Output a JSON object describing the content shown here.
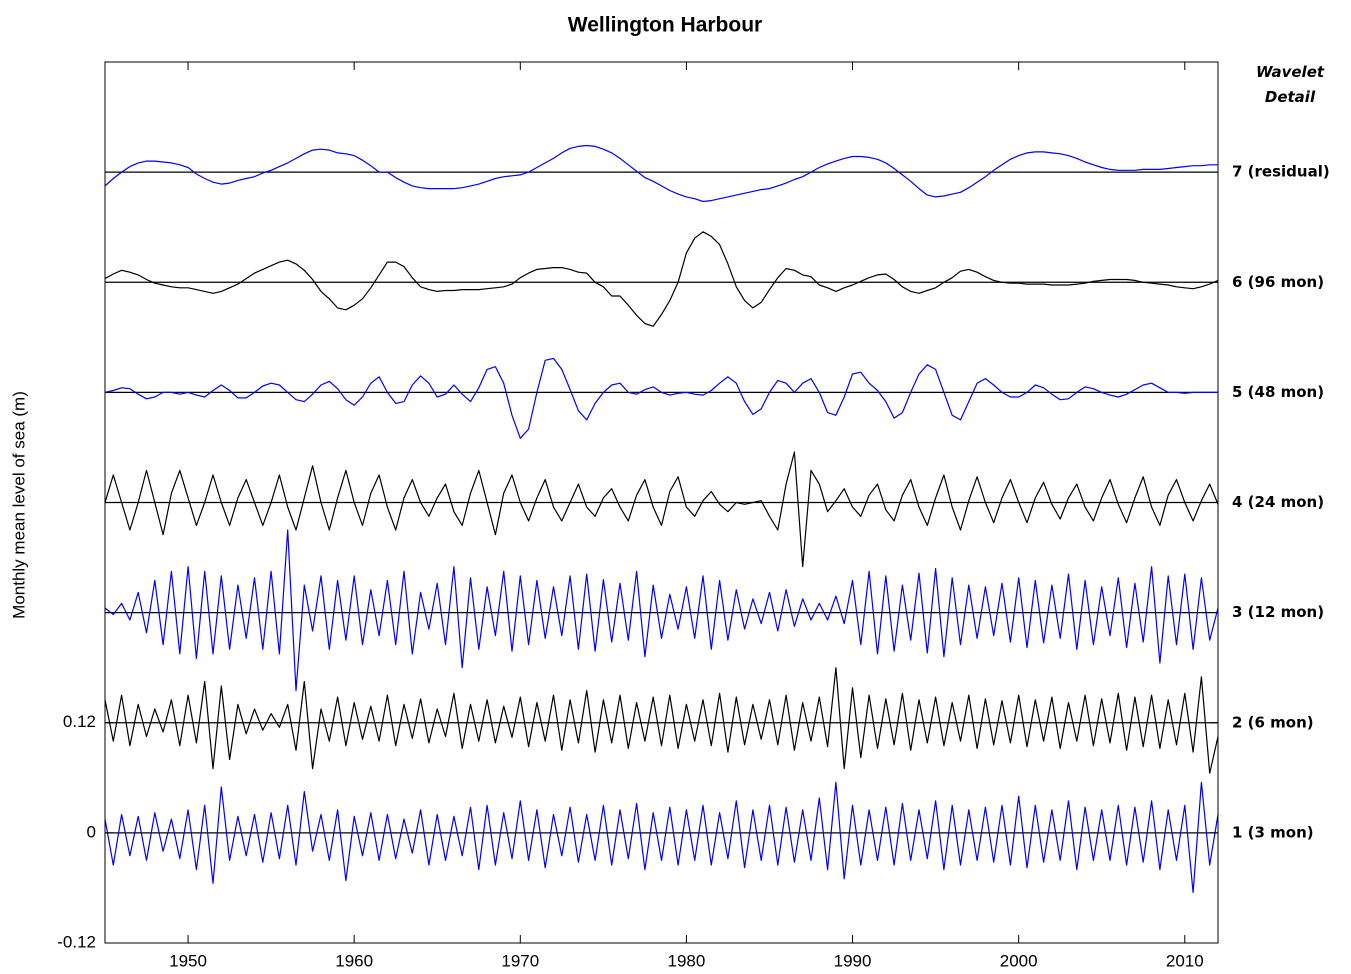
{
  "chart_data": {
    "type": "line",
    "title": "Wellington Harbour",
    "y_label": "Monthly mean level of sea (m)",
    "legend_title": "Wavelet Detail",
    "xlim": [
      1945,
      2012
    ],
    "xticks": [
      1950,
      1960,
      1970,
      1980,
      1990,
      2000,
      2010
    ],
    "ylim": [
      -0.12,
      0.84
    ],
    "yticks": [
      -0.12,
      0,
      0.12
    ],
    "x": [
      1945,
      1945.5,
      1946,
      1946.5,
      1947,
      1947.5,
      1948,
      1948.5,
      1949,
      1949.5,
      1950,
      1950.5,
      1951,
      1951.5,
      1952,
      1952.5,
      1953,
      1953.5,
      1954,
      1954.5,
      1955,
      1955.5,
      1956,
      1956.5,
      1957,
      1957.5,
      1958,
      1958.5,
      1959,
      1959.5,
      1960,
      1960.5,
      1961,
      1961.5,
      1962,
      1962.5,
      1963,
      1963.5,
      1964,
      1964.5,
      1965,
      1965.5,
      1966,
      1966.5,
      1967,
      1967.5,
      1968,
      1968.5,
      1969,
      1969.5,
      1970,
      1970.5,
      1971,
      1971.5,
      1972,
      1972.5,
      1973,
      1973.5,
      1974,
      1974.5,
      1975,
      1975.5,
      1976,
      1976.5,
      1977,
      1977.5,
      1978,
      1978.5,
      1979,
      1979.5,
      1980,
      1980.5,
      1981,
      1981.5,
      1982,
      1982.5,
      1983,
      1983.5,
      1984,
      1984.5,
      1985,
      1985.5,
      1986,
      1986.5,
      1987,
      1987.5,
      1988,
      1988.5,
      1989,
      1989.5,
      1990,
      1990.5,
      1991,
      1991.5,
      1992,
      1992.5,
      1993,
      1993.5,
      1994,
      1994.5,
      1995,
      1995.5,
      1996,
      1996.5,
      1997,
      1997.5,
      1998,
      1998.5,
      1999,
      1999.5,
      2000,
      2000.5,
      2001,
      2001.5,
      2002,
      2002.5,
      2003,
      2003.5,
      2004,
      2004.5,
      2005,
      2005.5,
      2006,
      2006.5,
      2007,
      2007.5,
      2008,
      2008.5,
      2009,
      2009.5,
      2010,
      2010.5,
      2011,
      2011.5,
      2012
    ],
    "series": [
      {
        "name": "7 (residual)",
        "color": "#0000ff",
        "baseline": 0.72,
        "values": [
          0.705,
          0.713,
          0.72,
          0.726,
          0.73,
          0.732,
          0.732,
          0.731,
          0.73,
          0.728,
          0.725,
          0.718,
          0.713,
          0.709,
          0.707,
          0.708,
          0.711,
          0.713,
          0.715,
          0.719,
          0.722,
          0.726,
          0.73,
          0.735,
          0.74,
          0.744,
          0.745,
          0.744,
          0.741,
          0.74,
          0.738,
          0.733,
          0.727,
          0.72,
          0.72,
          0.714,
          0.709,
          0.705,
          0.703,
          0.702,
          0.702,
          0.702,
          0.702,
          0.703,
          0.705,
          0.707,
          0.71,
          0.713,
          0.715,
          0.716,
          0.717,
          0.72,
          0.725,
          0.73,
          0.735,
          0.741,
          0.746,
          0.748,
          0.749,
          0.748,
          0.745,
          0.741,
          0.735,
          0.728,
          0.721,
          0.714,
          0.71,
          0.705,
          0.7,
          0.696,
          0.693,
          0.691,
          0.688,
          0.689,
          0.691,
          0.693,
          0.695,
          0.697,
          0.699,
          0.701,
          0.702,
          0.705,
          0.708,
          0.712,
          0.715,
          0.72,
          0.725,
          0.729,
          0.732,
          0.735,
          0.737,
          0.737,
          0.736,
          0.734,
          0.73,
          0.724,
          0.717,
          0.71,
          0.702,
          0.695,
          0.693,
          0.694,
          0.696,
          0.698,
          0.703,
          0.709,
          0.715,
          0.722,
          0.728,
          0.734,
          0.738,
          0.741,
          0.742,
          0.742,
          0.741,
          0.74,
          0.738,
          0.735,
          0.731,
          0.728,
          0.725,
          0.723,
          0.722,
          0.722,
          0.722,
          0.723,
          0.723,
          0.723,
          0.724,
          0.725,
          0.726,
          0.727,
          0.727,
          0.728,
          0.728
        ]
      },
      {
        "name": "6 (96 mon)",
        "color": "#000000",
        "baseline": 0.6,
        "values": [
          0.604,
          0.609,
          0.613,
          0.611,
          0.608,
          0.603,
          0.599,
          0.597,
          0.595,
          0.594,
          0.594,
          0.592,
          0.59,
          0.588,
          0.59,
          0.594,
          0.598,
          0.604,
          0.61,
          0.614,
          0.618,
          0.622,
          0.624,
          0.62,
          0.613,
          0.603,
          0.59,
          0.582,
          0.572,
          0.57,
          0.575,
          0.582,
          0.594,
          0.608,
          0.622,
          0.622,
          0.617,
          0.605,
          0.595,
          0.592,
          0.59,
          0.591,
          0.591,
          0.592,
          0.592,
          0.592,
          0.593,
          0.594,
          0.595,
          0.598,
          0.605,
          0.61,
          0.614,
          0.615,
          0.616,
          0.616,
          0.614,
          0.611,
          0.61,
          0.6,
          0.595,
          0.585,
          0.585,
          0.575,
          0.564,
          0.555,
          0.552,
          0.565,
          0.58,
          0.6,
          0.632,
          0.648,
          0.655,
          0.65,
          0.641,
          0.62,
          0.595,
          0.58,
          0.572,
          0.578,
          0.592,
          0.605,
          0.615,
          0.613,
          0.608,
          0.606,
          0.597,
          0.594,
          0.59,
          0.594,
          0.597,
          0.601,
          0.605,
          0.608,
          0.609,
          0.603,
          0.595,
          0.59,
          0.588,
          0.591,
          0.594,
          0.6,
          0.605,
          0.612,
          0.614,
          0.611,
          0.606,
          0.602,
          0.6,
          0.599,
          0.599,
          0.598,
          0.598,
          0.598,
          0.597,
          0.597,
          0.597,
          0.598,
          0.599,
          0.601,
          0.602,
          0.603,
          0.603,
          0.603,
          0.602,
          0.6,
          0.599,
          0.598,
          0.597,
          0.595,
          0.594,
          0.593,
          0.595,
          0.598,
          0.602
        ]
      },
      {
        "name": "5 (48 mon)",
        "color": "#0000ff",
        "baseline": 0.48,
        "values": [
          0.48,
          0.482,
          0.485,
          0.484,
          0.478,
          0.473,
          0.475,
          0.48,
          0.48,
          0.478,
          0.48,
          0.477,
          0.475,
          0.482,
          0.488,
          0.482,
          0.474,
          0.474,
          0.48,
          0.487,
          0.49,
          0.488,
          0.48,
          0.472,
          0.47,
          0.478,
          0.488,
          0.492,
          0.484,
          0.472,
          0.466,
          0.475,
          0.49,
          0.497,
          0.48,
          0.468,
          0.47,
          0.488,
          0.498,
          0.49,
          0.475,
          0.478,
          0.488,
          0.478,
          0.47,
          0.485,
          0.505,
          0.508,
          0.49,
          0.455,
          0.43,
          0.44,
          0.48,
          0.515,
          0.517,
          0.505,
          0.483,
          0.46,
          0.45,
          0.468,
          0.48,
          0.488,
          0.49,
          0.48,
          0.478,
          0.483,
          0.486,
          0.48,
          0.477,
          0.479,
          0.48,
          0.478,
          0.477,
          0.482,
          0.49,
          0.497,
          0.49,
          0.47,
          0.456,
          0.462,
          0.48,
          0.493,
          0.49,
          0.48,
          0.49,
          0.495,
          0.48,
          0.458,
          0.455,
          0.475,
          0.5,
          0.502,
          0.49,
          0.482,
          0.47,
          0.452,
          0.458,
          0.48,
          0.5,
          0.51,
          0.505,
          0.48,
          0.455,
          0.45,
          0.47,
          0.49,
          0.495,
          0.488,
          0.48,
          0.475,
          0.475,
          0.48,
          0.488,
          0.485,
          0.478,
          0.472,
          0.473,
          0.48,
          0.486,
          0.484,
          0.48,
          0.477,
          0.475,
          0.478,
          0.483,
          0.488,
          0.49,
          0.485,
          0.48,
          0.48,
          0.479,
          0.48,
          0.48,
          0.48,
          0.48
        ]
      },
      {
        "name": "4 (24 mon)",
        "color": "#000000",
        "baseline": 0.36,
        "values": [
          0.36,
          0.39,
          0.36,
          0.33,
          0.36,
          0.395,
          0.36,
          0.325,
          0.37,
          0.395,
          0.365,
          0.335,
          0.36,
          0.39,
          0.36,
          0.335,
          0.365,
          0.385,
          0.36,
          0.335,
          0.36,
          0.39,
          0.355,
          0.33,
          0.365,
          0.4,
          0.36,
          0.33,
          0.365,
          0.395,
          0.36,
          0.335,
          0.37,
          0.39,
          0.355,
          0.33,
          0.365,
          0.385,
          0.36,
          0.345,
          0.365,
          0.38,
          0.35,
          0.335,
          0.37,
          0.395,
          0.36,
          0.325,
          0.37,
          0.39,
          0.36,
          0.34,
          0.365,
          0.385,
          0.355,
          0.34,
          0.36,
          0.38,
          0.355,
          0.345,
          0.365,
          0.375,
          0.355,
          0.34,
          0.368,
          0.385,
          0.355,
          0.335,
          0.372,
          0.388,
          0.355,
          0.345,
          0.362,
          0.372,
          0.358,
          0.35,
          0.36,
          0.358,
          0.36,
          0.362,
          0.345,
          0.33,
          0.38,
          0.415,
          0.29,
          0.395,
          0.38,
          0.35,
          0.362,
          0.375,
          0.355,
          0.345,
          0.368,
          0.38,
          0.352,
          0.34,
          0.368,
          0.385,
          0.355,
          0.335,
          0.365,
          0.39,
          0.355,
          0.33,
          0.362,
          0.388,
          0.36,
          0.338,
          0.365,
          0.385,
          0.36,
          0.338,
          0.365,
          0.382,
          0.358,
          0.342,
          0.365,
          0.38,
          0.355,
          0.34,
          0.365,
          0.385,
          0.358,
          0.338,
          0.365,
          0.388,
          0.355,
          0.335,
          0.368,
          0.385,
          0.36,
          0.34,
          0.362,
          0.38,
          0.358
        ]
      },
      {
        "name": "3 (12 mon)",
        "color": "#0000ff",
        "baseline": 0.24,
        "values": [
          0.245,
          0.238,
          0.25,
          0.232,
          0.262,
          0.218,
          0.275,
          0.205,
          0.285,
          0.195,
          0.29,
          0.19,
          0.285,
          0.195,
          0.28,
          0.2,
          0.27,
          0.212,
          0.278,
          0.2,
          0.285,
          0.195,
          0.33,
          0.155,
          0.27,
          0.22,
          0.28,
          0.2,
          0.275,
          0.21,
          0.28,
          0.205,
          0.265,
          0.215,
          0.275,
          0.205,
          0.285,
          0.195,
          0.262,
          0.222,
          0.272,
          0.205,
          0.29,
          0.18,
          0.278,
          0.2,
          0.268,
          0.215,
          0.285,
          0.198,
          0.28,
          0.205,
          0.275,
          0.212,
          0.268,
          0.215,
          0.28,
          0.2,
          0.282,
          0.198,
          0.276,
          0.208,
          0.272,
          0.21,
          0.285,
          0.192,
          0.27,
          0.212,
          0.26,
          0.222,
          0.268,
          0.212,
          0.28,
          0.2,
          0.275,
          0.21,
          0.265,
          0.222,
          0.255,
          0.228,
          0.262,
          0.22,
          0.265,
          0.225,
          0.255,
          0.232,
          0.25,
          0.232,
          0.258,
          0.228,
          0.275,
          0.205,
          0.285,
          0.195,
          0.28,
          0.198,
          0.27,
          0.21,
          0.283,
          0.196,
          0.288,
          0.192,
          0.278,
          0.205,
          0.27,
          0.212,
          0.268,
          0.215,
          0.272,
          0.208,
          0.278,
          0.202,
          0.275,
          0.207,
          0.27,
          0.212,
          0.282,
          0.2,
          0.275,
          0.205,
          0.268,
          0.215,
          0.278,
          0.202,
          0.272,
          0.208,
          0.29,
          0.185,
          0.28,
          0.205,
          0.282,
          0.2,
          0.278,
          0.21,
          0.245
        ]
      },
      {
        "name": "2 (6 mon)",
        "color": "#000000",
        "baseline": 0.12,
        "values": [
          0.145,
          0.1,
          0.15,
          0.095,
          0.14,
          0.105,
          0.135,
          0.11,
          0.145,
          0.095,
          0.15,
          0.098,
          0.165,
          0.07,
          0.16,
          0.08,
          0.14,
          0.108,
          0.135,
          0.112,
          0.13,
          0.115,
          0.14,
          0.09,
          0.165,
          0.07,
          0.135,
          0.1,
          0.148,
          0.095,
          0.142,
          0.102,
          0.138,
          0.1,
          0.15,
          0.095,
          0.14,
          0.103,
          0.146,
          0.098,
          0.135,
          0.105,
          0.152,
          0.092,
          0.14,
          0.1,
          0.145,
          0.098,
          0.138,
          0.104,
          0.148,
          0.094,
          0.142,
          0.1,
          0.15,
          0.09,
          0.145,
          0.098,
          0.155,
          0.088,
          0.145,
          0.098,
          0.15,
          0.092,
          0.142,
          0.1,
          0.148,
          0.095,
          0.15,
          0.092,
          0.14,
          0.1,
          0.145,
          0.095,
          0.152,
          0.088,
          0.148,
          0.096,
          0.14,
          0.102,
          0.145,
          0.096,
          0.15,
          0.09,
          0.142,
          0.1,
          0.148,
          0.094,
          0.18,
          0.07,
          0.158,
          0.082,
          0.15,
          0.092,
          0.146,
          0.096,
          0.152,
          0.09,
          0.145,
          0.098,
          0.148,
          0.095,
          0.142,
          0.1,
          0.15,
          0.092,
          0.146,
          0.096,
          0.144,
          0.098,
          0.15,
          0.094,
          0.145,
          0.1,
          0.148,
          0.092,
          0.142,
          0.1,
          0.15,
          0.095,
          0.146,
          0.098,
          0.152,
          0.09,
          0.148,
          0.094,
          0.15,
          0.092,
          0.145,
          0.096,
          0.152,
          0.088,
          0.17,
          0.065,
          0.105
        ]
      },
      {
        "name": "1 (3 mon)",
        "color": "#0000ff",
        "baseline": 0,
        "values": [
          0.015,
          -0.035,
          0.02,
          -0.025,
          0.018,
          -0.03,
          0.022,
          -0.02,
          0.015,
          -0.028,
          0.025,
          -0.04,
          0.03,
          -0.055,
          0.05,
          -0.03,
          0.018,
          -0.025,
          0.02,
          -0.032,
          0.022,
          -0.028,
          0.03,
          -0.035,
          0.045,
          -0.02,
          0.02,
          -0.03,
          0.025,
          -0.052,
          0.018,
          -0.025,
          0.022,
          -0.03,
          0.02,
          -0.028,
          0.015,
          -0.022,
          0.025,
          -0.035,
          0.02,
          -0.03,
          0.018,
          -0.025,
          0.028,
          -0.04,
          0.03,
          -0.035,
          0.022,
          -0.028,
          0.035,
          -0.03,
          0.025,
          -0.038,
          0.02,
          -0.025,
          0.028,
          -0.032,
          0.02,
          -0.03,
          0.03,
          -0.035,
          0.025,
          -0.028,
          0.032,
          -0.04,
          0.022,
          -0.03,
          0.028,
          -0.035,
          0.025,
          -0.03,
          0.03,
          -0.035,
          0.022,
          -0.028,
          0.035,
          -0.038,
          0.025,
          -0.03,
          0.03,
          -0.035,
          0.028,
          -0.032,
          0.025,
          -0.03,
          0.038,
          -0.04,
          0.055,
          -0.05,
          0.03,
          -0.035,
          0.025,
          -0.03,
          0.028,
          -0.035,
          0.032,
          -0.03,
          0.025,
          -0.028,
          0.035,
          -0.04,
          0.03,
          -0.035,
          0.025,
          -0.03,
          0.028,
          -0.032,
          0.03,
          -0.035,
          0.04,
          -0.038,
          0.03,
          -0.032,
          0.025,
          -0.03,
          0.035,
          -0.04,
          0.028,
          -0.03,
          0.025,
          -0.03,
          0.03,
          -0.035,
          0.028,
          -0.032,
          0.035,
          -0.04,
          0.025,
          -0.03,
          0.03,
          -0.065,
          0.055,
          -0.035,
          0.02
        ]
      }
    ]
  }
}
